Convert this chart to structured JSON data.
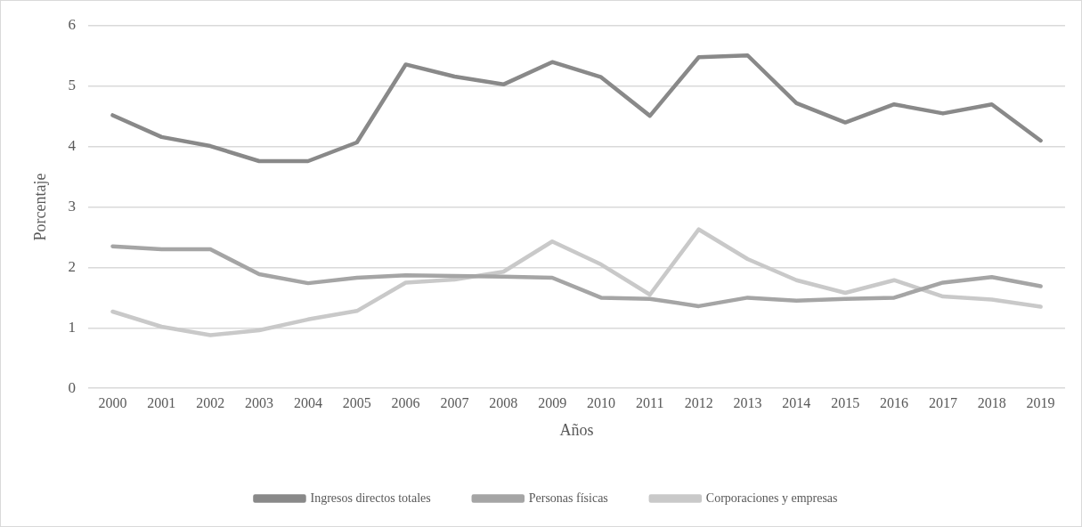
{
  "chart_data": {
    "type": "line",
    "xlabel": "Años",
    "ylabel": "Porcentaje",
    "categories": [
      "2000",
      "2001",
      "2002",
      "2003",
      "2004",
      "2005",
      "2006",
      "2007",
      "2008",
      "2009",
      "2010",
      "2011",
      "2012",
      "2013",
      "2014",
      "2015",
      "2016",
      "2017",
      "2018",
      "2019"
    ],
    "series": [
      {
        "name": "Ingresos directos totales",
        "color": "#898989",
        "values": [
          4.52,
          4.16,
          4.01,
          3.76,
          3.76,
          4.07,
          5.36,
          5.16,
          5.03,
          5.4,
          5.15,
          4.51,
          5.48,
          5.51,
          4.72,
          4.4,
          4.7,
          4.55,
          4.7,
          4.1
        ]
      },
      {
        "name": "Personas físicas",
        "color": "#a5a5a5",
        "values": [
          2.35,
          2.3,
          2.3,
          1.89,
          1.74,
          1.83,
          1.87,
          1.86,
          1.85,
          1.83,
          1.5,
          1.48,
          1.36,
          1.5,
          1.45,
          1.48,
          1.5,
          1.75,
          1.84,
          1.69
        ]
      },
      {
        "name": "Corporaciones y empresas",
        "color": "#c9c9c9",
        "values": [
          1.27,
          1.02,
          0.88,
          0.96,
          1.14,
          1.28,
          1.75,
          1.8,
          1.93,
          2.43,
          2.05,
          1.55,
          2.63,
          2.14,
          1.79,
          1.58,
          1.79,
          1.52,
          1.47,
          1.35
        ]
      }
    ],
    "ylim": [
      0,
      6
    ],
    "yticks": [
      0,
      1,
      2,
      3,
      4,
      5,
      6
    ],
    "grid": "y",
    "legend": "bottom",
    "marker": "none"
  }
}
